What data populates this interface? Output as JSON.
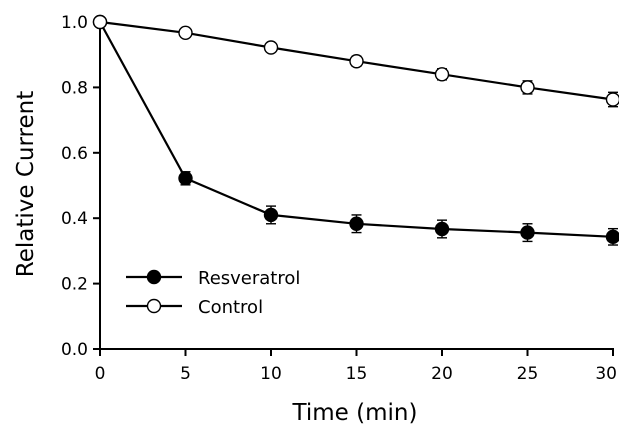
{
  "chart_data": {
    "type": "line",
    "title": "",
    "xlabel": "Time (min)",
    "ylabel": "Relative Current",
    "xlim": [
      0,
      30
    ],
    "ylim": [
      0,
      1.0
    ],
    "xticks": [
      0,
      5,
      10,
      15,
      20,
      25,
      30
    ],
    "yticks": [
      0.0,
      0.2,
      0.4,
      0.6,
      0.8,
      1.0
    ],
    "xtick_labels": [
      "0",
      "5",
      "10",
      "15",
      "20",
      "25",
      "30"
    ],
    "ytick_labels": [
      "0.0",
      "0.2",
      "0.4",
      "0.6",
      "0.8",
      "1.0"
    ],
    "grid": false,
    "legend_position": "bottom-left",
    "x": [
      0,
      5,
      10,
      15,
      20,
      25,
      30
    ],
    "series": [
      {
        "name": "Resveratrol",
        "marker": "filled-circle",
        "color": "#000000",
        "values": [
          1.0,
          0.522,
          0.41,
          0.383,
          0.367,
          0.356,
          0.343
        ],
        "errors": [
          0.0,
          0.02,
          0.027,
          0.027,
          0.027,
          0.027,
          0.025
        ]
      },
      {
        "name": "Control",
        "marker": "open-circle",
        "color": "#000000",
        "values": [
          1.0,
          0.967,
          0.922,
          0.88,
          0.84,
          0.8,
          0.763
        ],
        "errors": [
          0.0,
          0.01,
          0.013,
          0.015,
          0.017,
          0.02,
          0.022
        ]
      }
    ]
  }
}
